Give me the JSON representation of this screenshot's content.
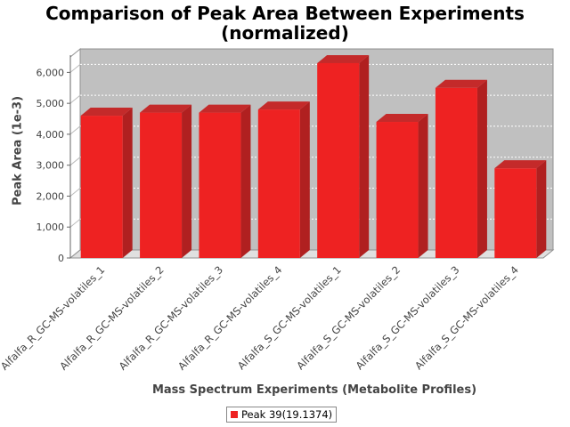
{
  "chart_data": {
    "type": "bar",
    "title_line1": "Comparison of Peak Area Between Experiments",
    "title_line2": "(normalized)",
    "xlabel": "Mass Spectrum Experiments (Metabolite Profiles)",
    "ylabel": "Peak Area (1e-3)",
    "ylim": [
      0,
      6500
    ],
    "yticks": [
      0,
      1000,
      2000,
      3000,
      4000,
      5000,
      6000
    ],
    "ytick_labels": [
      "0",
      "1,000",
      "2,000",
      "3,000",
      "4,000",
      "5,000",
      "6,000"
    ],
    "categories": [
      "Alfalfa_R_GC-MS-volatiles_1",
      "Alfalfa_R_GC-MS-volatiles_2",
      "Alfalfa_R_GC-MS-volatiles_3",
      "Alfalfa_R_GC-MS-volatiles_4",
      "Alfalfa_S_GC-MS-volatiles_1",
      "Alfalfa_S_GC-MS-volatiles_2",
      "Alfalfa_S_GC-MS-volatiles_3",
      "Alfalfa_S_GC-MS-volatiles_4"
    ],
    "series": [
      {
        "name": "Peak 39(19.1374)",
        "color": "#ee2222",
        "values": [
          4600,
          4700,
          4700,
          4800,
          6300,
          4400,
          5500,
          2900
        ]
      }
    ],
    "grid": true,
    "legend_position": "bottom-center"
  }
}
